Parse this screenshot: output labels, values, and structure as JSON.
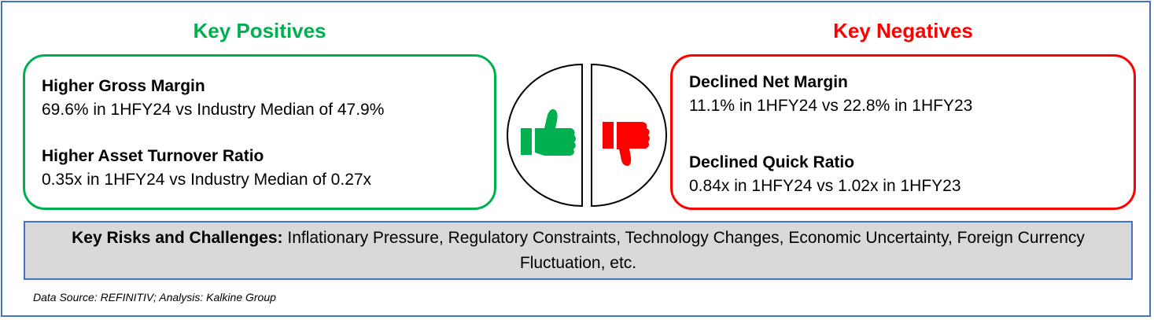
{
  "positives": {
    "heading": "Key Positives",
    "color": "#00b050",
    "items": [
      {
        "title": "Higher Gross Margin",
        "detail": "69.6% in 1HFY24 vs Industry Median of 47.9%"
      },
      {
        "title": "Higher Asset Turnover Ratio",
        "detail": "0.35x in 1HFY24 vs Industry Median of 0.27x"
      }
    ]
  },
  "negatives": {
    "heading": "Key Negatives",
    "color": "#ff0000",
    "items": [
      {
        "title": "Declined Net Margin",
        "detail": "11.1% in 1HFY24 vs 22.8% in 1HFY23"
      },
      {
        "title": "Declined Quick Ratio",
        "detail": "0.84x in 1HFY24 vs 1.02x in 1HFY23"
      }
    ]
  },
  "icons": {
    "left": "thumbs-up-icon",
    "right": "thumbs-down-icon"
  },
  "risks": {
    "label": "Key Risks and Challenges:",
    "text": " Inflationary Pressure, Regulatory Constraints, Technology Changes, Economic Uncertainty, Foreign Currency Fluctuation, etc."
  },
  "footer": {
    "source": "Data Source: REFINITIV; Analysis: Kalkine Group"
  },
  "colors": {
    "frame": "#4472c4",
    "risk_bg": "#d9d9d9"
  }
}
